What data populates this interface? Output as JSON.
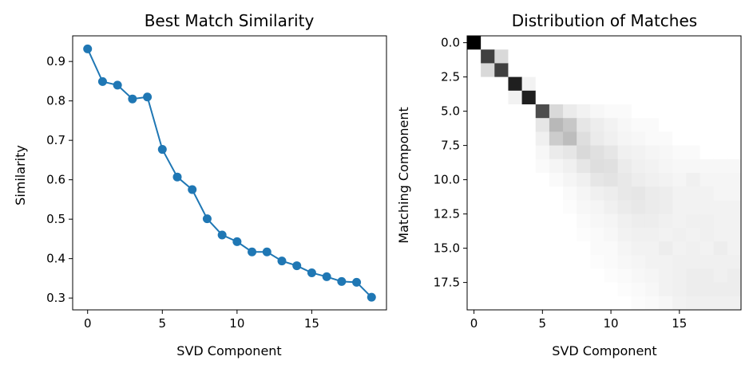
{
  "chart_data": [
    {
      "type": "line",
      "title": "Best Match Similarity",
      "xlabel": "SVD Component",
      "ylabel": "Similarity",
      "xlim": [
        -1,
        20
      ],
      "ylim": [
        0.27,
        0.965
      ],
      "xticks": [
        0,
        5,
        10,
        15
      ],
      "xtick_labels": [
        "0",
        "5",
        "10",
        "15"
      ],
      "yticks": [
        0.3,
        0.4,
        0.5,
        0.6,
        0.7,
        0.8,
        0.9
      ],
      "ytick_labels": [
        "0.3",
        "0.4",
        "0.5",
        "0.6",
        "0.7",
        "0.8",
        "0.9"
      ],
      "marker": "circle",
      "grid": false,
      "color": "#1f77b4",
      "x": [
        0,
        1,
        2,
        3,
        4,
        5,
        6,
        7,
        8,
        9,
        10,
        11,
        12,
        13,
        14,
        15,
        16,
        17,
        18,
        19
      ],
      "y": [
        0.932,
        0.849,
        0.84,
        0.805,
        0.81,
        0.677,
        0.607,
        0.575,
        0.501,
        0.46,
        0.443,
        0.417,
        0.417,
        0.394,
        0.382,
        0.364,
        0.354,
        0.342,
        0.34,
        0.302
      ]
    },
    {
      "type": "heatmap",
      "title": "Distribution of Matches",
      "xlabel": "SVD Component",
      "ylabel": "Matching Component",
      "colormap": "gray_r",
      "xticks": [
        0,
        5,
        10,
        15
      ],
      "xtick_labels": [
        "0",
        "5",
        "10",
        "15"
      ],
      "yticks": [
        0,
        2.5,
        5,
        7.5,
        10,
        12.5,
        15,
        17.5
      ],
      "ytick_labels": [
        "0.0",
        "2.5",
        "5.0",
        "7.5",
        "10.0",
        "12.5",
        "15.0",
        "17.5"
      ],
      "shape": [
        20,
        20
      ],
      "values": [
        [
          1.0,
          0.0,
          0.0,
          0.0,
          0.0,
          0.0,
          0.0,
          0.0,
          0.0,
          0.0,
          0.0,
          0.0,
          0.0,
          0.0,
          0.0,
          0.0,
          0.0,
          0.0,
          0.0,
          0.0
        ],
        [
          0.0,
          0.75,
          0.15,
          0.0,
          0.0,
          0.0,
          0.0,
          0.0,
          0.0,
          0.0,
          0.0,
          0.0,
          0.0,
          0.0,
          0.0,
          0.0,
          0.0,
          0.0,
          0.0,
          0.0
        ],
        [
          0.0,
          0.15,
          0.75,
          0.0,
          0.0,
          0.0,
          0.0,
          0.0,
          0.0,
          0.0,
          0.0,
          0.0,
          0.0,
          0.0,
          0.0,
          0.0,
          0.0,
          0.0,
          0.0,
          0.0
        ],
        [
          0.0,
          0.0,
          0.0,
          0.88,
          0.05,
          0.0,
          0.0,
          0.0,
          0.0,
          0.0,
          0.0,
          0.0,
          0.0,
          0.0,
          0.0,
          0.0,
          0.0,
          0.0,
          0.0,
          0.0
        ],
        [
          0.0,
          0.0,
          0.0,
          0.05,
          0.88,
          0.0,
          0.0,
          0.0,
          0.0,
          0.0,
          0.0,
          0.0,
          0.0,
          0.0,
          0.0,
          0.0,
          0.0,
          0.0,
          0.0,
          0.0
        ],
        [
          0.0,
          0.0,
          0.0,
          0.0,
          0.0,
          0.7,
          0.15,
          0.08,
          0.05,
          0.03,
          0.02,
          0.02,
          0.0,
          0.0,
          0.0,
          0.0,
          0.0,
          0.0,
          0.0,
          0.0
        ],
        [
          0.0,
          0.0,
          0.0,
          0.0,
          0.0,
          0.1,
          0.28,
          0.22,
          0.1,
          0.07,
          0.05,
          0.03,
          0.02,
          0.02,
          0.0,
          0.0,
          0.0,
          0.0,
          0.0,
          0.0
        ],
        [
          0.0,
          0.0,
          0.0,
          0.0,
          0.0,
          0.06,
          0.2,
          0.26,
          0.13,
          0.08,
          0.06,
          0.04,
          0.03,
          0.02,
          0.02,
          0.0,
          0.0,
          0.0,
          0.0,
          0.0
        ],
        [
          0.0,
          0.0,
          0.0,
          0.0,
          0.0,
          0.03,
          0.08,
          0.1,
          0.15,
          0.12,
          0.1,
          0.06,
          0.05,
          0.04,
          0.03,
          0.02,
          0.02,
          0.0,
          0.0,
          0.0
        ],
        [
          0.0,
          0.0,
          0.0,
          0.0,
          0.0,
          0.02,
          0.04,
          0.06,
          0.1,
          0.13,
          0.12,
          0.08,
          0.06,
          0.05,
          0.04,
          0.03,
          0.03,
          0.03,
          0.03,
          0.03
        ],
        [
          0.0,
          0.0,
          0.0,
          0.0,
          0.0,
          0.0,
          0.02,
          0.04,
          0.06,
          0.1,
          0.11,
          0.09,
          0.07,
          0.06,
          0.05,
          0.04,
          0.06,
          0.04,
          0.04,
          0.04
        ],
        [
          0.0,
          0.0,
          0.0,
          0.0,
          0.0,
          0.0,
          0.0,
          0.02,
          0.04,
          0.06,
          0.07,
          0.09,
          0.1,
          0.08,
          0.07,
          0.05,
          0.05,
          0.05,
          0.04,
          0.04
        ],
        [
          0.0,
          0.0,
          0.0,
          0.0,
          0.0,
          0.0,
          0.0,
          0.01,
          0.03,
          0.04,
          0.06,
          0.08,
          0.09,
          0.08,
          0.07,
          0.05,
          0.05,
          0.05,
          0.05,
          0.05
        ],
        [
          0.0,
          0.0,
          0.0,
          0.0,
          0.0,
          0.0,
          0.0,
          0.0,
          0.02,
          0.03,
          0.04,
          0.06,
          0.07,
          0.07,
          0.06,
          0.05,
          0.06,
          0.06,
          0.05,
          0.05
        ],
        [
          0.0,
          0.0,
          0.0,
          0.0,
          0.0,
          0.0,
          0.0,
          0.0,
          0.01,
          0.02,
          0.03,
          0.05,
          0.06,
          0.06,
          0.05,
          0.06,
          0.05,
          0.06,
          0.05,
          0.05
        ],
        [
          0.0,
          0.0,
          0.0,
          0.0,
          0.0,
          0.0,
          0.0,
          0.0,
          0.0,
          0.02,
          0.02,
          0.04,
          0.05,
          0.05,
          0.07,
          0.05,
          0.06,
          0.05,
          0.07,
          0.05
        ],
        [
          0.0,
          0.0,
          0.0,
          0.0,
          0.0,
          0.0,
          0.0,
          0.0,
          0.0,
          0.01,
          0.02,
          0.03,
          0.04,
          0.05,
          0.05,
          0.06,
          0.06,
          0.06,
          0.06,
          0.06
        ],
        [
          0.0,
          0.0,
          0.0,
          0.0,
          0.0,
          0.0,
          0.0,
          0.0,
          0.0,
          0.0,
          0.01,
          0.02,
          0.03,
          0.04,
          0.05,
          0.06,
          0.07,
          0.07,
          0.06,
          0.07
        ],
        [
          0.0,
          0.0,
          0.0,
          0.0,
          0.0,
          0.0,
          0.0,
          0.0,
          0.0,
          0.0,
          0.0,
          0.01,
          0.02,
          0.03,
          0.05,
          0.06,
          0.07,
          0.07,
          0.07,
          0.07
        ],
        [
          0.0,
          0.0,
          0.0,
          0.0,
          0.0,
          0.0,
          0.0,
          0.0,
          0.0,
          0.0,
          0.0,
          0.0,
          0.01,
          0.02,
          0.03,
          0.05,
          0.06,
          0.06,
          0.06,
          0.06
        ]
      ]
    }
  ]
}
